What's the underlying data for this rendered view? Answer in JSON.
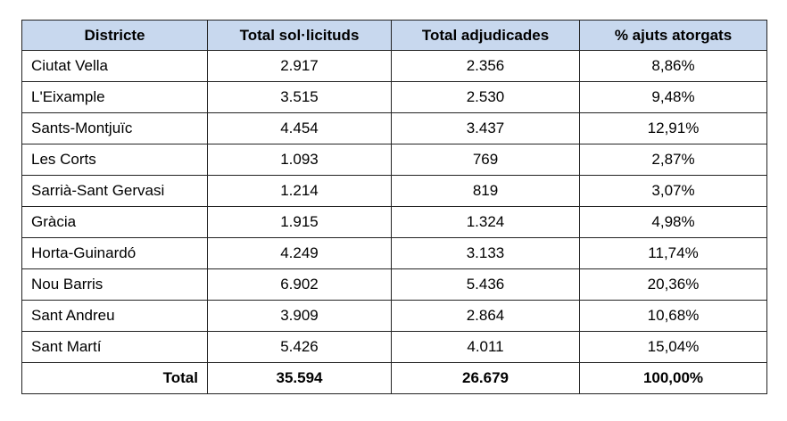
{
  "colors": {
    "header_bg": "#c8d8ee",
    "border": "#222222"
  },
  "chart_data": {
    "type": "table",
    "columns": [
      "Districte",
      "Total sol·licituds",
      "Total adjudicades",
      "% ajuts atorgats"
    ],
    "rows": [
      {
        "district": "Ciutat Vella",
        "requests": "2.917",
        "awarded": "2.356",
        "percent": "8,86%"
      },
      {
        "district": "L'Eixample",
        "requests": "3.515",
        "awarded": "2.530",
        "percent": "9,48%"
      },
      {
        "district": "Sants-Montjuïc",
        "requests": "4.454",
        "awarded": "3.437",
        "percent": "12,91%"
      },
      {
        "district": "Les Corts",
        "requests": "1.093",
        "awarded": "769",
        "percent": "2,87%"
      },
      {
        "district": "Sarrià-Sant Gervasi",
        "requests": "1.214",
        "awarded": "819",
        "percent": "3,07%"
      },
      {
        "district": "Gràcia",
        "requests": "1.915",
        "awarded": "1.324",
        "percent": "4,98%"
      },
      {
        "district": "Horta-Guinardó",
        "requests": "4.249",
        "awarded": "3.133",
        "percent": "11,74%"
      },
      {
        "district": "Nou Barris",
        "requests": "6.902",
        "awarded": "5.436",
        "percent": "20,36%"
      },
      {
        "district": "Sant Andreu",
        "requests": "3.909",
        "awarded": "2.864",
        "percent": "10,68%"
      },
      {
        "district": "Sant Martí",
        "requests": "5.426",
        "awarded": "4.011",
        "percent": "15,04%"
      }
    ],
    "total": {
      "label": "Total",
      "requests": "35.594",
      "awarded": "26.679",
      "percent": "100,00%"
    }
  }
}
